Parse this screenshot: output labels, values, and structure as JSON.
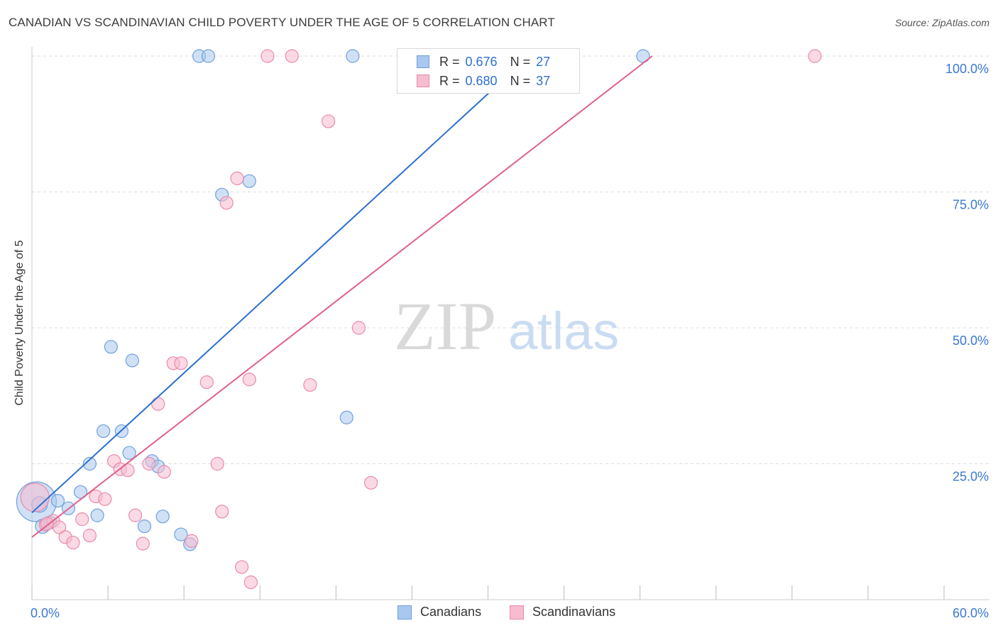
{
  "title": "CANADIAN VS SCANDINAVIAN CHILD POVERTY UNDER THE AGE OF 5 CORRELATION CHART",
  "source": "Source: ZipAtlas.com",
  "watermark": {
    "zip": "ZIP",
    "atlas": "atlas"
  },
  "legend": {
    "row1": {
      "r_label": "R =",
      "r_value": "0.676",
      "n_label": "N =",
      "n_value": "27"
    },
    "row2": {
      "r_label": "R =",
      "r_value": "0.680",
      "n_label": "N =",
      "n_value": "37"
    }
  },
  "bottom_legend": {
    "canadians": "Canadians",
    "scandinavians": "Scandinavians"
  },
  "colors": {
    "canadian_fill": "#a9c8ef",
    "canadian_stroke": "#6f9fdc",
    "canadian_line": "#2a6fd1",
    "scand_fill": "#f7bcd0",
    "scand_stroke": "#e98aa9",
    "scand_line": "#e0608a",
    "grid": "#dddddd",
    "tick_label": "#3a78d4"
  },
  "chart_data": {
    "type": "scatter",
    "title": "CANADIAN VS SCANDINAVIAN CHILD POVERTY UNDER THE AGE OF 5 CORRELATION CHART",
    "xlabel": "",
    "ylabel": "Child Poverty Under the Age of 5",
    "xlim": [
      0,
      60
    ],
    "ylim": [
      0,
      102
    ],
    "x_tick_labels": [
      "0.0%",
      "60.0%"
    ],
    "y_ticks": [
      25,
      50,
      75,
      100
    ],
    "y_tick_labels": [
      "25.0%",
      "50.0%",
      "75.0%",
      "100.0%"
    ],
    "grid": true,
    "series": [
      {
        "name": "Canadians",
        "r": 0.676,
        "n": 27,
        "trend": {
          "x": [
            0,
            32.7
          ],
          "y": [
            16.0,
            100.0
          ]
        },
        "points": [
          {
            "x": 0.3,
            "y": 18.0,
            "s": 28
          },
          {
            "x": 0.7,
            "y": 13.5,
            "s": 10
          },
          {
            "x": 1.2,
            "y": 14.2,
            "s": 9
          },
          {
            "x": 1.7,
            "y": 18.2,
            "s": 9
          },
          {
            "x": 2.4,
            "y": 16.8,
            "s": 9
          },
          {
            "x": 3.2,
            "y": 19.8,
            "s": 9
          },
          {
            "x": 3.8,
            "y": 25.0,
            "s": 9
          },
          {
            "x": 4.3,
            "y": 15.5,
            "s": 9
          },
          {
            "x": 4.7,
            "y": 31.0,
            "s": 9
          },
          {
            "x": 5.2,
            "y": 46.5,
            "s": 9
          },
          {
            "x": 5.9,
            "y": 31.0,
            "s": 9
          },
          {
            "x": 6.4,
            "y": 27.0,
            "s": 9
          },
          {
            "x": 6.6,
            "y": 44.0,
            "s": 9
          },
          {
            "x": 7.4,
            "y": 13.5,
            "s": 9
          },
          {
            "x": 7.9,
            "y": 25.5,
            "s": 9
          },
          {
            "x": 8.3,
            "y": 24.5,
            "s": 9
          },
          {
            "x": 8.6,
            "y": 15.3,
            "s": 9
          },
          {
            "x": 9.8,
            "y": 12.0,
            "s": 9
          },
          {
            "x": 10.4,
            "y": 10.2,
            "s": 9
          },
          {
            "x": 11.0,
            "y": 100.0,
            "s": 9
          },
          {
            "x": 11.6,
            "y": 100.0,
            "s": 9
          },
          {
            "x": 12.5,
            "y": 74.5,
            "s": 9
          },
          {
            "x": 14.3,
            "y": 77.0,
            "s": 9
          },
          {
            "x": 20.7,
            "y": 33.5,
            "s": 9
          },
          {
            "x": 21.1,
            "y": 100.0,
            "s": 9
          },
          {
            "x": 40.2,
            "y": 100.0,
            "s": 9
          },
          {
            "x": 0.5,
            "y": 17.5,
            "s": 11
          }
        ]
      },
      {
        "name": "Scandinavians",
        "r": 0.68,
        "n": 37,
        "trend": {
          "x": [
            0,
            40.8
          ],
          "y": [
            11.5,
            100.0
          ]
        },
        "points": [
          {
            "x": 0.2,
            "y": 18.8,
            "s": 20
          },
          {
            "x": 0.9,
            "y": 13.8,
            "s": 9
          },
          {
            "x": 1.4,
            "y": 14.5,
            "s": 9
          },
          {
            "x": 1.8,
            "y": 13.3,
            "s": 9
          },
          {
            "x": 2.2,
            "y": 11.5,
            "s": 9
          },
          {
            "x": 2.7,
            "y": 10.5,
            "s": 9
          },
          {
            "x": 3.3,
            "y": 14.8,
            "s": 9
          },
          {
            "x": 3.8,
            "y": 11.8,
            "s": 9
          },
          {
            "x": 4.2,
            "y": 19.0,
            "s": 9
          },
          {
            "x": 4.8,
            "y": 18.5,
            "s": 9
          },
          {
            "x": 5.4,
            "y": 25.5,
            "s": 9
          },
          {
            "x": 5.8,
            "y": 24.0,
            "s": 9
          },
          {
            "x": 6.3,
            "y": 23.8,
            "s": 9
          },
          {
            "x": 6.8,
            "y": 15.5,
            "s": 9
          },
          {
            "x": 7.3,
            "y": 10.3,
            "s": 9
          },
          {
            "x": 7.7,
            "y": 25.0,
            "s": 9
          },
          {
            "x": 8.3,
            "y": 36.0,
            "s": 9
          },
          {
            "x": 8.7,
            "y": 23.5,
            "s": 9
          },
          {
            "x": 9.3,
            "y": 43.5,
            "s": 9
          },
          {
            "x": 9.8,
            "y": 43.5,
            "s": 9
          },
          {
            "x": 10.5,
            "y": 10.8,
            "s": 9
          },
          {
            "x": 11.5,
            "y": 40.0,
            "s": 9
          },
          {
            "x": 12.2,
            "y": 25.0,
            "s": 9
          },
          {
            "x": 12.5,
            "y": 16.2,
            "s": 9
          },
          {
            "x": 12.8,
            "y": 73.0,
            "s": 9
          },
          {
            "x": 13.5,
            "y": 77.5,
            "s": 9
          },
          {
            "x": 13.8,
            "y": 6.0,
            "s": 9
          },
          {
            "x": 14.3,
            "y": 40.5,
            "s": 9
          },
          {
            "x": 14.4,
            "y": 3.2,
            "s": 9
          },
          {
            "x": 15.5,
            "y": 100.0,
            "s": 9
          },
          {
            "x": 17.1,
            "y": 100.0,
            "s": 9
          },
          {
            "x": 18.3,
            "y": 39.5,
            "s": 9
          },
          {
            "x": 19.5,
            "y": 88.0,
            "s": 9
          },
          {
            "x": 21.5,
            "y": 50.0,
            "s": 9
          },
          {
            "x": 22.3,
            "y": 21.5,
            "s": 9
          },
          {
            "x": 51.5,
            "y": 100.0,
            "s": 9
          },
          {
            "x": 1.0,
            "y": 14.0,
            "s": 9
          }
        ]
      }
    ]
  }
}
